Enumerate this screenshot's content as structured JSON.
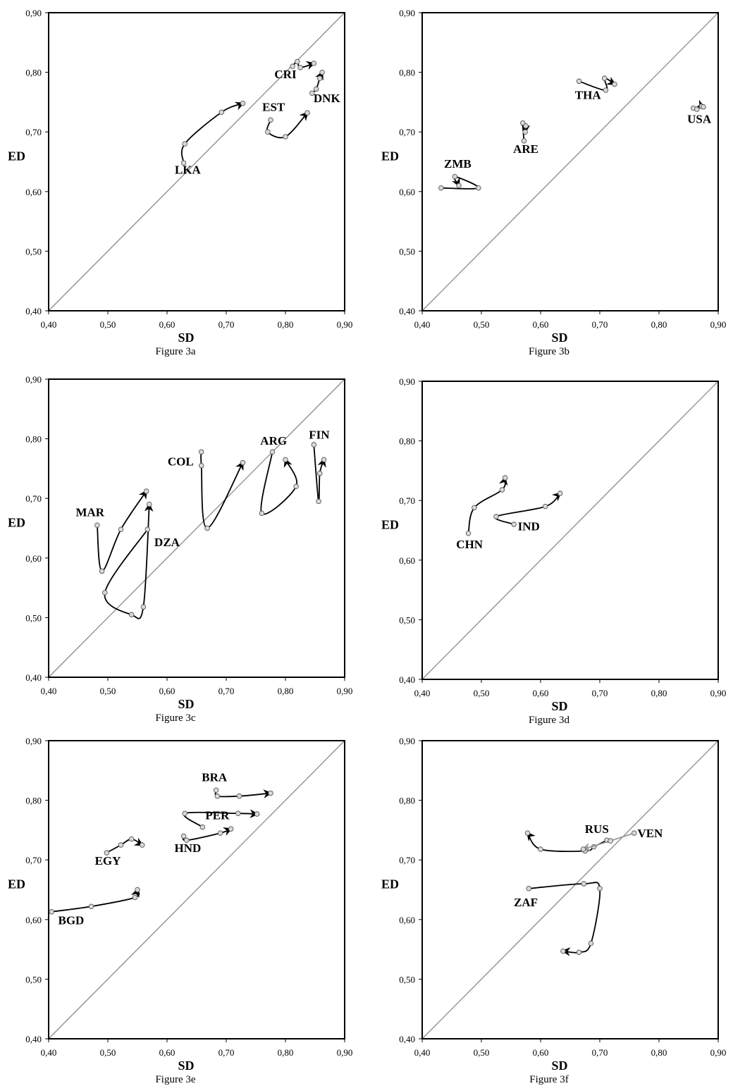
{
  "chart_data": [
    {
      "type": "line",
      "caption": "Figure 3a",
      "xlabel": "SD",
      "ylabel": "ED",
      "xlim": [
        0.4,
        0.9
      ],
      "ylim": [
        0.4,
        0.9
      ],
      "ticks": [
        "0,40",
        "0,50",
        "0,60",
        "0,70",
        "0,80",
        "0,90"
      ],
      "diagonal": true,
      "series": [
        {
          "name": "LKA",
          "points": [
            [
              0.628,
              0.648
            ],
            [
              0.63,
              0.68
            ],
            [
              0.692,
              0.733
            ],
            [
              0.728,
              0.748
            ]
          ],
          "label_at": [
            0.635,
            0.63
          ]
        },
        {
          "name": "EST",
          "points": [
            [
              0.775,
              0.72
            ],
            [
              0.77,
              0.7
            ],
            [
              0.8,
              0.692
            ],
            [
              0.837,
              0.732
            ]
          ],
          "label_at": [
            0.78,
            0.735
          ]
        },
        {
          "name": "CRI",
          "points": [
            [
              0.812,
              0.81
            ],
            [
              0.82,
              0.818
            ],
            [
              0.825,
              0.808
            ],
            [
              0.848,
              0.815
            ]
          ],
          "label_at": [
            0.8,
            0.79
          ]
        },
        {
          "name": "DNK",
          "points": [
            [
              0.845,
              0.765
            ],
            [
              0.852,
              0.772
            ],
            [
              0.858,
              0.79
            ],
            [
              0.862,
              0.8
            ]
          ],
          "label_at": [
            0.87,
            0.75
          ]
        }
      ]
    },
    {
      "type": "line",
      "caption": "Figure 3b",
      "xlabel": "SD",
      "ylabel": "ED",
      "xlim": [
        0.4,
        0.9
      ],
      "ylim": [
        0.4,
        0.9
      ],
      "ticks": [
        "0,40",
        "0,50",
        "0,60",
        "0,70",
        "0,80",
        "0,90"
      ],
      "diagonal": true,
      "series": [
        {
          "name": "ZMB",
          "points": [
            [
              0.432,
              0.606
            ],
            [
              0.495,
              0.606
            ],
            [
              0.455,
              0.625
            ],
            [
              0.462,
              0.61
            ]
          ],
          "label_at": [
            0.46,
            0.64
          ]
        },
        {
          "name": "ARE",
          "points": [
            [
              0.572,
              0.685
            ],
            [
              0.57,
              0.715
            ],
            [
              0.575,
              0.71
            ],
            [
              0.574,
              0.7
            ]
          ],
          "label_at": [
            0.575,
            0.665
          ]
        },
        {
          "name": "THA",
          "points": [
            [
              0.665,
              0.785
            ],
            [
              0.71,
              0.77
            ],
            [
              0.708,
              0.79
            ],
            [
              0.725,
              0.78
            ]
          ],
          "label_at": [
            0.68,
            0.755
          ]
        },
        {
          "name": "USA",
          "points": [
            [
              0.858,
              0.74
            ],
            [
              0.864,
              0.738
            ],
            [
              0.872,
              0.743
            ],
            [
              0.875,
              0.742
            ]
          ],
          "label_at": [
            0.868,
            0.715
          ]
        }
      ]
    },
    {
      "type": "line",
      "caption": "Figure 3c",
      "xlabel": "SD",
      "ylabel": "ED",
      "xlim": [
        0.4,
        0.9
      ],
      "ylim": [
        0.4,
        0.9
      ],
      "ticks": [
        "0,40",
        "0,50",
        "0,60",
        "0,70",
        "0,80",
        "0,90"
      ],
      "diagonal": true,
      "series": [
        {
          "name": "MAR",
          "points": [
            [
              0.482,
              0.655
            ],
            [
              0.49,
              0.578
            ],
            [
              0.522,
              0.648
            ],
            [
              0.565,
              0.712
            ]
          ],
          "label_at": [
            0.47,
            0.67
          ]
        },
        {
          "name": "DZA",
          "points": [
            [
              0.567,
              0.648
            ],
            [
              0.495,
              0.542
            ],
            [
              0.54,
              0.505
            ],
            [
              0.56,
              0.518
            ],
            [
              0.57,
              0.69
            ]
          ],
          "label_at": [
            0.6,
            0.62
          ]
        },
        {
          "name": "COL",
          "points": [
            [
              0.658,
              0.778
            ],
            [
              0.658,
              0.755
            ],
            [
              0.668,
              0.65
            ],
            [
              0.728,
              0.76
            ]
          ],
          "label_at": [
            0.623,
            0.755
          ]
        },
        {
          "name": "ARG",
          "points": [
            [
              0.778,
              0.778
            ],
            [
              0.76,
              0.675
            ],
            [
              0.818,
              0.72
            ],
            [
              0.8,
              0.765
            ]
          ],
          "label_at": [
            0.78,
            0.79
          ]
        },
        {
          "name": "FIN",
          "points": [
            [
              0.848,
              0.79
            ],
            [
              0.856,
              0.695
            ],
            [
              0.858,
              0.742
            ],
            [
              0.865,
              0.765
            ]
          ],
          "label_at": [
            0.857,
            0.8
          ]
        }
      ]
    },
    {
      "type": "line",
      "caption": "Figure 3d",
      "xlabel": "SD",
      "ylabel": "ED",
      "xlim": [
        0.4,
        0.9
      ],
      "ylim": [
        0.4,
        0.9
      ],
      "ticks": [
        "0,40",
        "0,50",
        "0,60",
        "0,70",
        "0,80",
        "0,90"
      ],
      "diagonal": true,
      "series": [
        {
          "name": "CHN",
          "points": [
            [
              0.478,
              0.645
            ],
            [
              0.488,
              0.688
            ],
            [
              0.535,
              0.718
            ],
            [
              0.54,
              0.738
            ]
          ],
          "label_at": [
            0.48,
            0.62
          ]
        },
        {
          "name": "IND",
          "points": [
            [
              0.555,
              0.66
            ],
            [
              0.525,
              0.673
            ],
            [
              0.608,
              0.69
            ],
            [
              0.633,
              0.712
            ]
          ],
          "label_at": [
            0.58,
            0.65
          ]
        }
      ]
    },
    {
      "type": "line",
      "caption": "Figure 3e",
      "xlabel": "SD",
      "ylabel": "ED",
      "xlim": [
        0.4,
        0.9
      ],
      "ylim": [
        0.4,
        0.9
      ],
      "ticks": [
        "0,40",
        "0,50",
        "0,60",
        "0,70",
        "0,80",
        "0,90"
      ],
      "diagonal": true,
      "series": [
        {
          "name": "BGD",
          "points": [
            [
              0.405,
              0.613
            ],
            [
              0.472,
              0.622
            ],
            [
              0.546,
              0.637
            ],
            [
              0.55,
              0.65
            ]
          ],
          "label_at": [
            0.438,
            0.592
          ]
        },
        {
          "name": "EGY",
          "points": [
            [
              0.498,
              0.712
            ],
            [
              0.522,
              0.725
            ],
            [
              0.54,
              0.735
            ],
            [
              0.558,
              0.725
            ]
          ],
          "label_at": [
            0.5,
            0.692
          ]
        },
        {
          "name": "HND",
          "points": [
            [
              0.628,
              0.74
            ],
            [
              0.633,
              0.733
            ],
            [
              0.69,
              0.745
            ],
            [
              0.708,
              0.752
            ]
          ],
          "label_at": [
            0.635,
            0.713
          ]
        },
        {
          "name": "PER",
          "points": [
            [
              0.66,
              0.755
            ],
            [
              0.63,
              0.778
            ],
            [
              0.72,
              0.778
            ],
            [
              0.752,
              0.777
            ]
          ],
          "label_at": [
            0.685,
            0.768
          ]
        },
        {
          "name": "BRA",
          "points": [
            [
              0.683,
              0.817
            ],
            [
              0.685,
              0.807
            ],
            [
              0.722,
              0.807
            ],
            [
              0.775,
              0.812
            ]
          ],
          "label_at": [
            0.68,
            0.832
          ]
        }
      ]
    },
    {
      "type": "line",
      "caption": "Figure 3f",
      "xlabel": "SD",
      "ylabel": "ED",
      "xlim": [
        0.4,
        0.9
      ],
      "ylim": [
        0.4,
        0.9
      ],
      "ticks": [
        "0,40",
        "0,50",
        "0,60",
        "0,70",
        "0,80",
        "0,90"
      ],
      "diagonal": true,
      "series": [
        {
          "name": "RUS",
          "points": [
            [
              0.712,
              0.733
            ],
            [
              0.69,
              0.722
            ],
            [
              0.675,
              0.715
            ],
            [
              0.6,
              0.718
            ],
            [
              0.578,
              0.745
            ]
          ],
          "label_at": [
            0.695,
            0.745
          ]
        },
        {
          "name": "VEN",
          "color": "#999999",
          "points": [
            [
              0.758,
              0.745
            ],
            [
              0.718,
              0.732
            ],
            [
              0.672,
              0.718
            ]
          ],
          "label_at": [
            0.785,
            0.738
          ]
        },
        {
          "name": "ZAF",
          "points": [
            [
              0.58,
              0.652
            ],
            [
              0.673,
              0.66
            ],
            [
              0.7,
              0.652
            ],
            [
              0.685,
              0.56
            ],
            [
              0.665,
              0.545
            ],
            [
              0.638,
              0.547
            ]
          ],
          "label_at": [
            0.575,
            0.622
          ]
        }
      ]
    }
  ]
}
